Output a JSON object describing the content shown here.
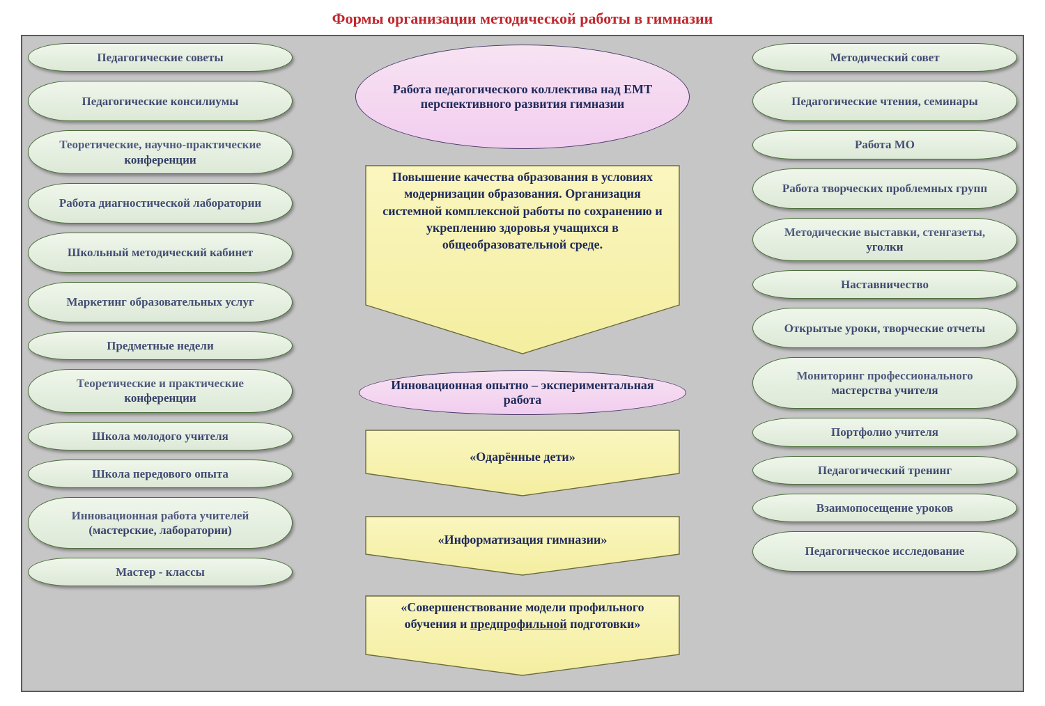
{
  "title": {
    "text": "Формы организации методической работы в гимназии",
    "color": "#c1272d",
    "fontsize": 22
  },
  "canvas": {
    "bg": "#c6c6c6",
    "border": "#5a5a5a"
  },
  "pill_style": {
    "fill": "#e6f2e0",
    "stroke": "#4b6f3a",
    "text_color": "#1e2a5a",
    "fontsize": 17,
    "stroke_width": 1
  },
  "ellipse_style": {
    "fill_top": "#f7e3f2",
    "fill_bottom": "#f2cdef",
    "stroke": "#4a3a6a",
    "text_color": "#1e2a5a",
    "fontsize": 18
  },
  "arrow_style": {
    "fill_top": "#faf6bf",
    "fill_bottom": "#f4eea0",
    "stroke": "#6a6a40",
    "text_color": "#1e2a5a",
    "fontsize": 18
  },
  "left_items": [
    "Педагогические советы",
    "Педагогические консилиумы",
    "Теоретические,    научно-практические конференции",
    "Работа диагностической лаборатории",
    "Школьный методический кабинет",
    "Маркетинг образовательных услуг",
    "Предметные недели",
    "Теоретические и практические конференции",
    "Школа молодого учителя",
    "Школа передового опыта",
    "Инновационная работа учителей (мастерские, лаборатории)",
    "Мастер - классы"
  ],
  "right_items": [
    "Методический совет",
    "Педагогические чтения, семинары",
    "Работа МО",
    "Работа творческих проблемных групп",
    "Методические выставки, стенгазеты, уголки",
    "Наставничество",
    "Открытые уроки, творческие отчеты",
    "Мониторинг профессионального мастерства учителя",
    "Портфолио учителя",
    "Педагогический тренинг",
    "Взаимопосещение уроков",
    "Педагогическое исследование"
  ],
  "center": {
    "ellipse1": "Работа педагогического коллектива над ЕМТ перспективного развития гимназии",
    "arrow_big": "Повышение качества образования в условиях модернизации образования. Организация системной комплексной работы по сохранению и укреплению здоровья учащихся в общеобразовательной среде.",
    "ellipse2": "Инновационная опытно – экспериментальная работа",
    "arrow_a": "«Одарённые дети»",
    "arrow_b": "«Информатизация гимназии»",
    "arrow_c_pre": "«Совершенствование модели профильного обучения и ",
    "arrow_c_u": "предпрофильной",
    "arrow_c_post": " подготовки»"
  }
}
